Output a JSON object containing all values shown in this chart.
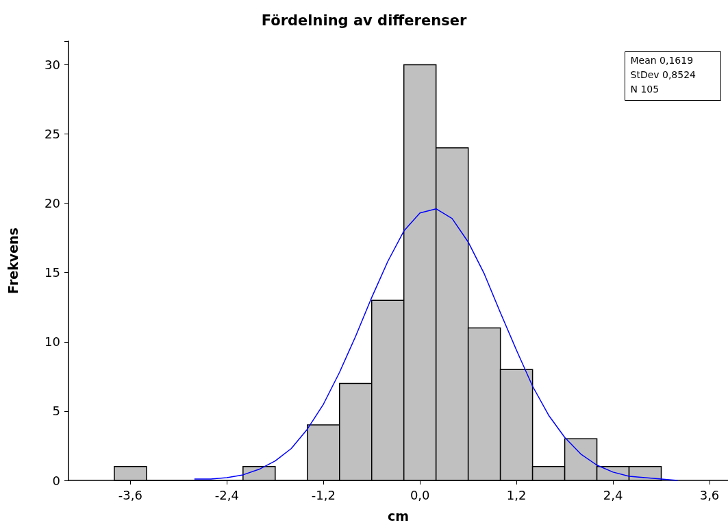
{
  "chart_data": {
    "type": "histogram",
    "title": "Fördelning av differenser",
    "xlabel": "cm",
    "ylabel": "Frekvens",
    "bins": [
      -3.8,
      -3.4,
      -3.0,
      -2.6,
      -2.2,
      -1.8,
      -1.4,
      -1.0,
      -0.6,
      -0.2,
      0.2,
      0.6,
      1.0,
      1.4,
      1.8,
      2.2,
      2.6,
      3.0
    ],
    "values": [
      1,
      0,
      0,
      0,
      1,
      0,
      4,
      7,
      13,
      30,
      24,
      11,
      8,
      1,
      3,
      1,
      1
    ],
    "color": "#c0c0c0",
    "series": [
      {
        "type": "line",
        "color": "#0000ff",
        "x": [
          -2.8,
          -2.6,
          -2.4,
          -2.2,
          -2.0,
          -1.8,
          -1.6,
          -1.4,
          -1.2,
          -1.0,
          -0.8,
          -0.6,
          -0.4,
          -0.2,
          0.0,
          0.2,
          0.4,
          0.6,
          0.8,
          1.0,
          1.2,
          1.4,
          1.6,
          1.8,
          2.0,
          2.2,
          2.4,
          2.6,
          2.8,
          3.0,
          3.2
        ],
        "values": [
          0.1,
          0.1,
          0.2,
          0.4,
          0.8,
          1.4,
          2.3,
          3.7,
          5.5,
          7.8,
          10.4,
          13.2,
          15.8,
          18.0,
          19.3,
          19.6,
          18.9,
          17.2,
          14.9,
          12.1,
          9.4,
          6.8,
          4.7,
          3.1,
          1.9,
          1.1,
          0.6,
          0.3,
          0.2,
          0.1,
          0.0
        ]
      }
    ],
    "xlim": [
      -4.37,
      3.83
    ],
    "xticks": [
      {
        "value": -3.6,
        "label": "-3,6"
      },
      {
        "value": -2.4,
        "label": "-2,4"
      },
      {
        "value": -1.2,
        "label": "-1,2"
      },
      {
        "value": 0,
        "label": "0,0"
      },
      {
        "value": 1.2,
        "label": "1,2"
      },
      {
        "value": 2.4,
        "label": "2,4"
      },
      {
        "value": 3.6,
        "label": "3,6"
      }
    ],
    "ylim": [
      0,
      31.7
    ],
    "yticks": [
      0,
      5,
      10,
      15,
      20,
      25,
      30
    ],
    "grid": false,
    "marker": "none",
    "line_style": "solid",
    "annotations": [
      "Mean 0,1619",
      "StDev 0,8524",
      "N 105"
    ]
  }
}
